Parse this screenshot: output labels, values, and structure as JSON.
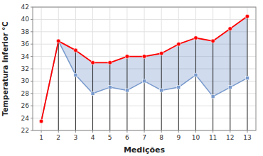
{
  "chart_data": {
    "type": "line",
    "xlabel": "Medições",
    "ylabel": "Temperatura Inferior °C",
    "x": [
      1,
      2,
      3,
      4,
      5,
      6,
      7,
      8,
      9,
      10,
      11,
      12,
      13
    ],
    "series": [
      {
        "color": "#ff0000",
        "marker": "circle",
        "line_style": "solid",
        "values": [
          23.5,
          36.5,
          35.0,
          33.0,
          33.0,
          34.0,
          34.0,
          34.5,
          36.0,
          37.0,
          36.5,
          38.5,
          40.5
        ]
      },
      {
        "color": "#7799cc",
        "marker": "square",
        "line_style": "solid",
        "values": [
          23.5,
          36.5,
          31.0,
          28.0,
          29.0,
          28.5,
          30.0,
          28.5,
          29.0,
          31.0,
          27.5,
          29.0,
          30.5
        ]
      }
    ],
    "xlim": [
      0.5,
      13.5
    ],
    "xticks": [
      1,
      2,
      3,
      4,
      5,
      6,
      7,
      8,
      9,
      10,
      11,
      12,
      13
    ],
    "ylim": [
      22,
      42
    ],
    "yticks": [
      22,
      24,
      26,
      28,
      30,
      32,
      34,
      36,
      38,
      40,
      42
    ],
    "grid": true
  }
}
